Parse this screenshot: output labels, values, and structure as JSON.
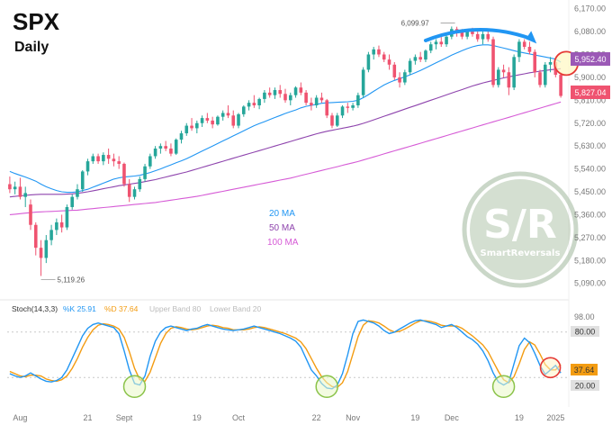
{
  "colors": {
    "up": "#26a69a",
    "down": "#ef5370",
    "ma20": "#2196f3",
    "ma50": "#8e44ad",
    "ma100": "#d65bd6",
    "stochK": "#2196f3",
    "stochD": "#f39c12",
    "accent_arrow": "#2196f3",
    "circle_red": "#e53935",
    "circle_green": "#8bc34a",
    "watermark": "#9fb79a"
  },
  "title": "SPX",
  "subtitle": "Daily",
  "annotations": {
    "high_label": "6,099.97",
    "low_label": "5,119.26"
  },
  "ma_legend": [
    {
      "label": "20 MA",
      "color": "#2196f3"
    },
    {
      "label": "50 MA",
      "color": "#8e44ad"
    },
    {
      "label": "100 MA",
      "color": "#d65bd6"
    }
  ],
  "price_badges": [
    {
      "label": "5,952.40",
      "bg": "#9b59b6",
      "fg": "#ffffff"
    },
    {
      "label": "5,827.04",
      "bg": "#ef5370",
      "fg": "#ffffff"
    }
  ],
  "stoch_legend": {
    "title": "Stoch(14,3,3)",
    "k_label": "%K 25.91",
    "d_label": "%D 37.64",
    "upper_label": "Upper Band 80",
    "lower_label": "Lower Band 20"
  },
  "stoch_badges": [
    {
      "label": "80.00",
      "bg": "#e0e0e0",
      "fg": "#333333"
    },
    {
      "label": "37.64",
      "bg": "#f39c12",
      "fg": "#333333"
    },
    {
      "label": "20.00",
      "bg": "#e0e0e0",
      "fg": "#333333"
    }
  ],
  "stoch_axis_labels": [
    "98.00"
  ],
  "watermark": {
    "big": "S/R",
    "small": "SmartReversals"
  },
  "chart_data": {
    "type": "candlestick",
    "title": "SPX",
    "subtitle": "Daily",
    "price_axis": {
      "ticks": [
        "6,170.00",
        "6,080.00",
        "5,990.00",
        "5,900.00",
        "5,810.00",
        "5,720.00",
        "5,630.00",
        "5,540.00",
        "5,450.00",
        "5,360.00",
        "5,270.00",
        "5,180.00",
        "5,090.00"
      ],
      "tick_values": [
        6170,
        6080,
        5990,
        5900,
        5810,
        5720,
        5630,
        5540,
        5450,
        5360,
        5270,
        5180,
        5090
      ],
      "range": [
        5050,
        6190
      ]
    },
    "x_axis_labels": [
      {
        "label": "Aug",
        "index": 2
      },
      {
        "label": "21",
        "index": 15
      },
      {
        "label": "Sept",
        "index": 22
      },
      {
        "label": "19",
        "index": 36
      },
      {
        "label": "Oct",
        "index": 44
      },
      {
        "label": "22",
        "index": 59
      },
      {
        "label": "Nov",
        "index": 66
      },
      {
        "label": "19",
        "index": 78
      },
      {
        "label": "Dec",
        "index": 85
      },
      {
        "label": "19",
        "index": 98
      },
      {
        "label": "2025",
        "index": 105
      }
    ],
    "candles": [
      [
        5480,
        5510,
        5445,
        5460
      ],
      [
        5460,
        5490,
        5440,
        5470
      ],
      [
        5470,
        5505,
        5420,
        5430
      ],
      [
        5430,
        5470,
        5390,
        5445
      ],
      [
        5400,
        5420,
        5300,
        5320
      ],
      [
        5320,
        5330,
        5200,
        5230
      ],
      [
        5230,
        5260,
        5119,
        5190
      ],
      [
        5190,
        5280,
        5170,
        5260
      ],
      [
        5260,
        5320,
        5240,
        5300
      ],
      [
        5300,
        5345,
        5280,
        5330
      ],
      [
        5330,
        5360,
        5290,
        5310
      ],
      [
        5310,
        5400,
        5300,
        5390
      ],
      [
        5390,
        5440,
        5380,
        5430
      ],
      [
        5430,
        5480,
        5420,
        5460
      ],
      [
        5460,
        5535,
        5450,
        5530
      ],
      [
        5530,
        5580,
        5515,
        5570
      ],
      [
        5570,
        5600,
        5560,
        5590
      ],
      [
        5590,
        5600,
        5560,
        5570
      ],
      [
        5570,
        5605,
        5555,
        5595
      ],
      [
        5595,
        5620,
        5560,
        5580
      ],
      [
        5580,
        5600,
        5550,
        5570
      ],
      [
        5570,
        5590,
        5540,
        5560
      ],
      [
        5560,
        5565,
        5470,
        5480
      ],
      [
        5480,
        5500,
        5410,
        5430
      ],
      [
        5430,
        5470,
        5420,
        5460
      ],
      [
        5460,
        5510,
        5450,
        5500
      ],
      [
        5500,
        5560,
        5490,
        5550
      ],
      [
        5550,
        5600,
        5540,
        5590
      ],
      [
        5590,
        5630,
        5580,
        5620
      ],
      [
        5620,
        5640,
        5600,
        5630
      ],
      [
        5630,
        5650,
        5610,
        5620
      ],
      [
        5620,
        5640,
        5590,
        5600
      ],
      [
        5600,
        5660,
        5595,
        5655
      ],
      [
        5655,
        5690,
        5640,
        5680
      ],
      [
        5680,
        5720,
        5670,
        5710
      ],
      [
        5710,
        5740,
        5690,
        5700
      ],
      [
        5700,
        5730,
        5680,
        5720
      ],
      [
        5720,
        5750,
        5705,
        5740
      ],
      [
        5740,
        5760,
        5720,
        5730
      ],
      [
        5730,
        5745,
        5700,
        5715
      ],
      [
        5715,
        5750,
        5710,
        5745
      ],
      [
        5745,
        5770,
        5730,
        5760
      ],
      [
        5760,
        5790,
        5740,
        5750
      ],
      [
        5750,
        5770,
        5700,
        5710
      ],
      [
        5710,
        5760,
        5700,
        5755
      ],
      [
        5755,
        5790,
        5745,
        5785
      ],
      [
        5785,
        5810,
        5770,
        5800
      ],
      [
        5800,
        5830,
        5780,
        5790
      ],
      [
        5790,
        5820,
        5775,
        5815
      ],
      [
        5815,
        5850,
        5800,
        5840
      ],
      [
        5840,
        5860,
        5820,
        5830
      ],
      [
        5830,
        5860,
        5815,
        5850
      ],
      [
        5850,
        5870,
        5820,
        5835
      ],
      [
        5835,
        5855,
        5800,
        5810
      ],
      [
        5810,
        5840,
        5790,
        5830
      ],
      [
        5830,
        5865,
        5820,
        5860
      ],
      [
        5860,
        5880,
        5830,
        5840
      ],
      [
        5840,
        5850,
        5790,
        5800
      ],
      [
        5800,
        5820,
        5770,
        5790
      ],
      [
        5790,
        5830,
        5780,
        5820
      ],
      [
        5820,
        5840,
        5800,
        5810
      ],
      [
        5810,
        5815,
        5740,
        5750
      ],
      [
        5750,
        5760,
        5700,
        5710
      ],
      [
        5710,
        5760,
        5705,
        5750
      ],
      [
        5750,
        5790,
        5740,
        5785
      ],
      [
        5785,
        5800,
        5760,
        5780
      ],
      [
        5780,
        5800,
        5770,
        5790
      ],
      [
        5790,
        5840,
        5780,
        5830
      ],
      [
        5830,
        5940,
        5820,
        5930
      ],
      [
        5930,
        6000,
        5920,
        5990
      ],
      [
        5990,
        6020,
        5970,
        6010
      ],
      [
        6010,
        6025,
        5980,
        5990
      ],
      [
        5990,
        6000,
        5960,
        5970
      ],
      [
        5970,
        5990,
        5930,
        5950
      ],
      [
        5950,
        5960,
        5890,
        5900
      ],
      [
        5900,
        5920,
        5860,
        5880
      ],
      [
        5880,
        5930,
        5870,
        5920
      ],
      [
        5920,
        5975,
        5910,
        5965
      ],
      [
        5965,
        5990,
        5950,
        5980
      ],
      [
        5980,
        6000,
        5960,
        5970
      ],
      [
        5970,
        6010,
        5960,
        6005
      ],
      [
        6005,
        6040,
        5995,
        6030
      ],
      [
        6030,
        6050,
        6010,
        6040
      ],
      [
        6040,
        6060,
        6020,
        6030
      ],
      [
        6030,
        6070,
        6020,
        6060
      ],
      [
        6060,
        6100,
        6050,
        6090
      ],
      [
        6090,
        6099,
        6060,
        6080
      ],
      [
        6080,
        6090,
        6050,
        6060
      ],
      [
        6060,
        6090,
        6050,
        6080
      ],
      [
        6080,
        6095,
        6060,
        6070
      ],
      [
        6070,
        6085,
        6040,
        6050
      ],
      [
        6050,
        6080,
        6030,
        6070
      ],
      [
        6070,
        6085,
        6040,
        6050
      ],
      [
        6050,
        6060,
        5860,
        5870
      ],
      [
        5870,
        5940,
        5860,
        5930
      ],
      [
        5930,
        5950,
        5900,
        5920
      ],
      [
        5920,
        5940,
        5830,
        5860
      ],
      [
        5860,
        5990,
        5850,
        5980
      ],
      [
        5980,
        6050,
        5960,
        6040
      ],
      [
        6040,
        6050,
        6010,
        6020
      ],
      [
        6020,
        6040,
        5990,
        6000
      ],
      [
        6000,
        6010,
        5900,
        5920
      ],
      [
        5920,
        5930,
        5860,
        5870
      ],
      [
        5870,
        5960,
        5860,
        5950
      ],
      [
        5950,
        5980,
        5920,
        5960
      ],
      [
        5960,
        5970,
        5900,
        5910
      ],
      [
        5910,
        5920,
        5820,
        5827
      ]
    ],
    "ma20": [
      5530,
      5522,
      5515,
      5508,
      5500,
      5492,
      5480,
      5470,
      5462,
      5455,
      5450,
      5448,
      5448,
      5450,
      5455,
      5460,
      5468,
      5476,
      5484,
      5492,
      5500,
      5505,
      5508,
      5510,
      5512,
      5515,
      5520,
      5526,
      5533,
      5540,
      5548,
      5556,
      5564,
      5572,
      5580,
      5590,
      5600,
      5610,
      5620,
      5630,
      5640,
      5650,
      5660,
      5670,
      5680,
      5690,
      5700,
      5710,
      5718,
      5726,
      5734,
      5742,
      5750,
      5758,
      5765,
      5772,
      5780,
      5786,
      5790,
      5794,
      5798,
      5800,
      5801,
      5802,
      5803,
      5804,
      5806,
      5810,
      5820,
      5832,
      5845,
      5858,
      5870,
      5880,
      5888,
      5895,
      5902,
      5910,
      5918,
      5927,
      5937,
      5947,
      5957,
      5967,
      5977,
      5987,
      5996,
      6005,
      6013,
      6020,
      6025,
      6028,
      6028,
      6025,
      6020,
      6015,
      6010,
      6005,
      6000,
      5996,
      5992,
      5988,
      5984,
      5980,
      5976,
      5972,
      5960
    ],
    "ma50": [
      5430,
      5432,
      5434,
      5436,
      5438,
      5439,
      5440,
      5440,
      5440,
      5440,
      5440,
      5441,
      5442,
      5444,
      5447,
      5450,
      5454,
      5458,
      5462,
      5466,
      5470,
      5474,
      5477,
      5480,
      5483,
      5486,
      5490,
      5494,
      5498,
      5503,
      5508,
      5513,
      5518,
      5523,
      5528,
      5534,
      5540,
      5546,
      5552,
      5558,
      5564,
      5570,
      5576,
      5582,
      5588,
      5594,
      5600,
      5606,
      5612,
      5618,
      5624,
      5630,
      5636,
      5642,
      5648,
      5654,
      5660,
      5666,
      5672,
      5678,
      5683,
      5688,
      5692,
      5696,
      5700,
      5704,
      5708,
      5713,
      5719,
      5726,
      5733,
      5740,
      5747,
      5754,
      5761,
      5768,
      5775,
      5782,
      5789,
      5796,
      5803,
      5810,
      5817,
      5824,
      5831,
      5838,
      5845,
      5852,
      5859,
      5866,
      5872,
      5878,
      5883,
      5888,
      5893,
      5898,
      5902,
      5906,
      5910,
      5914,
      5918,
      5921,
      5924,
      5927,
      5930,
      5932,
      5934
    ],
    "ma100": [
      5360,
      5362,
      5364,
      5366,
      5368,
      5370,
      5371,
      5372,
      5373,
      5374,
      5375,
      5376,
      5377,
      5378,
      5380,
      5382,
      5384,
      5386,
      5388,
      5390,
      5392,
      5394,
      5396,
      5398,
      5400,
      5402,
      5404,
      5406,
      5408,
      5411,
      5414,
      5417,
      5420,
      5423,
      5426,
      5429,
      5432,
      5436,
      5440,
      5444,
      5448,
      5452,
      5456,
      5460,
      5464,
      5468,
      5472,
      5476,
      5480,
      5484,
      5488,
      5492,
      5496,
      5500,
      5504,
      5509,
      5514,
      5519,
      5524,
      5529,
      5534,
      5539,
      5544,
      5549,
      5554,
      5559,
      5564,
      5569,
      5575,
      5581,
      5587,
      5593,
      5599,
      5605,
      5611,
      5617,
      5623,
      5629,
      5635,
      5641,
      5647,
      5653,
      5659,
      5665,
      5671,
      5677,
      5683,
      5689,
      5695,
      5701,
      5707,
      5713,
      5719,
      5725,
      5731,
      5737,
      5743,
      5749,
      5755,
      5761,
      5767,
      5773,
      5779,
      5785,
      5791,
      5797,
      5803
    ],
    "stochastic": {
      "name": "Stoch(14,3,3)",
      "range": [
        0,
        100
      ],
      "upper_band": 80,
      "lower_band": 20,
      "k_last": 25.91,
      "d_last": 37.64,
      "k": [
        25,
        22,
        20,
        22,
        26,
        22,
        18,
        15,
        14,
        16,
        20,
        30,
        45,
        60,
        75,
        85,
        90,
        92,
        90,
        88,
        86,
        78,
        55,
        30,
        12,
        10,
        22,
        48,
        68,
        80,
        86,
        88,
        86,
        84,
        82,
        84,
        85,
        88,
        90,
        88,
        86,
        84,
        83,
        82,
        83,
        84,
        86,
        88,
        86,
        84,
        82,
        80,
        78,
        75,
        72,
        68,
        60,
        45,
        30,
        22,
        12,
        6,
        5,
        10,
        25,
        50,
        78,
        94,
        96,
        94,
        92,
        88,
        82,
        78,
        80,
        84,
        88,
        92,
        95,
        96,
        94,
        92,
        90,
        86,
        88,
        90,
        86,
        80,
        74,
        70,
        64,
        55,
        42,
        26,
        14,
        10,
        14,
        38,
        62,
        72,
        66,
        52,
        36,
        24,
        30,
        36,
        26
      ],
      "d": [
        28,
        25,
        22,
        21,
        23,
        23,
        22,
        18,
        16,
        15,
        17,
        22,
        32,
        45,
        60,
        73,
        83,
        89,
        91,
        90,
        88,
        84,
        73,
        54,
        32,
        17,
        15,
        27,
        46,
        65,
        78,
        85,
        87,
        86,
        84,
        83,
        84,
        86,
        88,
        89,
        88,
        86,
        85,
        83,
        83,
        83,
        84,
        86,
        87,
        86,
        84,
        82,
        80,
        78,
        75,
        72,
        67,
        58,
        45,
        32,
        21,
        13,
        8,
        7,
        13,
        28,
        51,
        74,
        89,
        95,
        94,
        92,
        88,
        83,
        80,
        81,
        84,
        88,
        92,
        95,
        95,
        94,
        92,
        89,
        88,
        88,
        88,
        85,
        80,
        75,
        69,
        63,
        54,
        41,
        28,
        17,
        13,
        21,
        38,
        57,
        67,
        63,
        51,
        37,
        30,
        30,
        37
      ]
    },
    "grid": false,
    "legend_placement": "center-left"
  }
}
